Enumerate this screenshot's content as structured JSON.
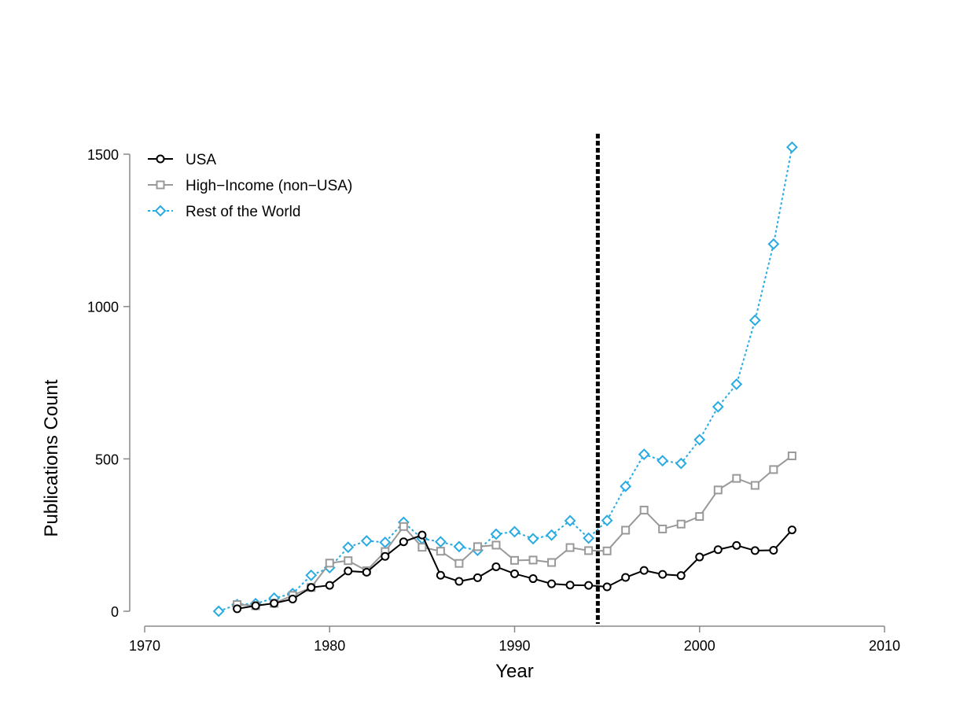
{
  "chart_data": {
    "type": "line",
    "xlabel": "Year",
    "ylabel": "Publications Count",
    "xlim": [
      1970,
      2010
    ],
    "ylim": [
      0,
      1500
    ],
    "xticks": [
      1970,
      1980,
      1990,
      2000,
      2010
    ],
    "yticks": [
      0,
      500,
      1000,
      1500
    ],
    "grid": false,
    "legend_position": "top-left",
    "reference_line": {
      "x": 1994.5,
      "style": "dotted"
    },
    "series": [
      {
        "name": "USA",
        "color": "#000000",
        "line_style": "solid",
        "marker": "circle",
        "x": [
          1975,
          1976,
          1977,
          1978,
          1979,
          1980,
          1981,
          1982,
          1983,
          1984,
          1985,
          1986,
          1987,
          1988,
          1989,
          1990,
          1991,
          1992,
          1993,
          1994,
          1995,
          1996,
          1997,
          1998,
          1999,
          2000,
          2001,
          2002,
          2003,
          2004,
          2005
        ],
        "values": [
          8,
          18,
          26,
          40,
          78,
          85,
          132,
          128,
          180,
          228,
          250,
          118,
          98,
          110,
          146,
          123,
          107,
          90,
          86,
          85,
          80,
          111,
          134,
          121,
          117,
          178,
          202,
          216,
          199,
          200,
          267
        ]
      },
      {
        "name": "High−Income (non−USA)",
        "color": "#999999",
        "line_style": "solid",
        "marker": "square",
        "x": [
          1975,
          1976,
          1977,
          1978,
          1979,
          1980,
          1981,
          1982,
          1983,
          1984,
          1985,
          1986,
          1987,
          1988,
          1989,
          1990,
          1991,
          1992,
          1993,
          1994,
          1995,
          1996,
          1997,
          1998,
          1999,
          2000,
          2001,
          2002,
          2003,
          2004,
          2005
        ],
        "values": [
          22,
          18,
          26,
          52,
          78,
          158,
          166,
          133,
          196,
          278,
          210,
          197,
          157,
          212,
          217,
          167,
          168,
          160,
          209,
          199,
          198,
          266,
          332,
          270,
          286,
          311,
          398,
          436,
          413,
          465,
          510
        ]
      },
      {
        "name": "Rest of the World",
        "color": "#29ABE2",
        "line_style": "dotted",
        "marker": "diamond",
        "x": [
          1974,
          1975,
          1976,
          1977,
          1978,
          1979,
          1980,
          1981,
          1982,
          1983,
          1984,
          1985,
          1986,
          1987,
          1988,
          1989,
          1990,
          1991,
          1992,
          1993,
          1994,
          1995,
          1996,
          1997,
          1998,
          1999,
          2000,
          2001,
          2002,
          2003,
          2004,
          2005
        ],
        "values": [
          0,
          22,
          25,
          43,
          58,
          118,
          143,
          210,
          231,
          226,
          292,
          238,
          228,
          212,
          200,
          253,
          261,
          238,
          250,
          297,
          240,
          298,
          410,
          515,
          494,
          485,
          563,
          671,
          745,
          955,
          1205,
          1523
        ]
      }
    ]
  }
}
